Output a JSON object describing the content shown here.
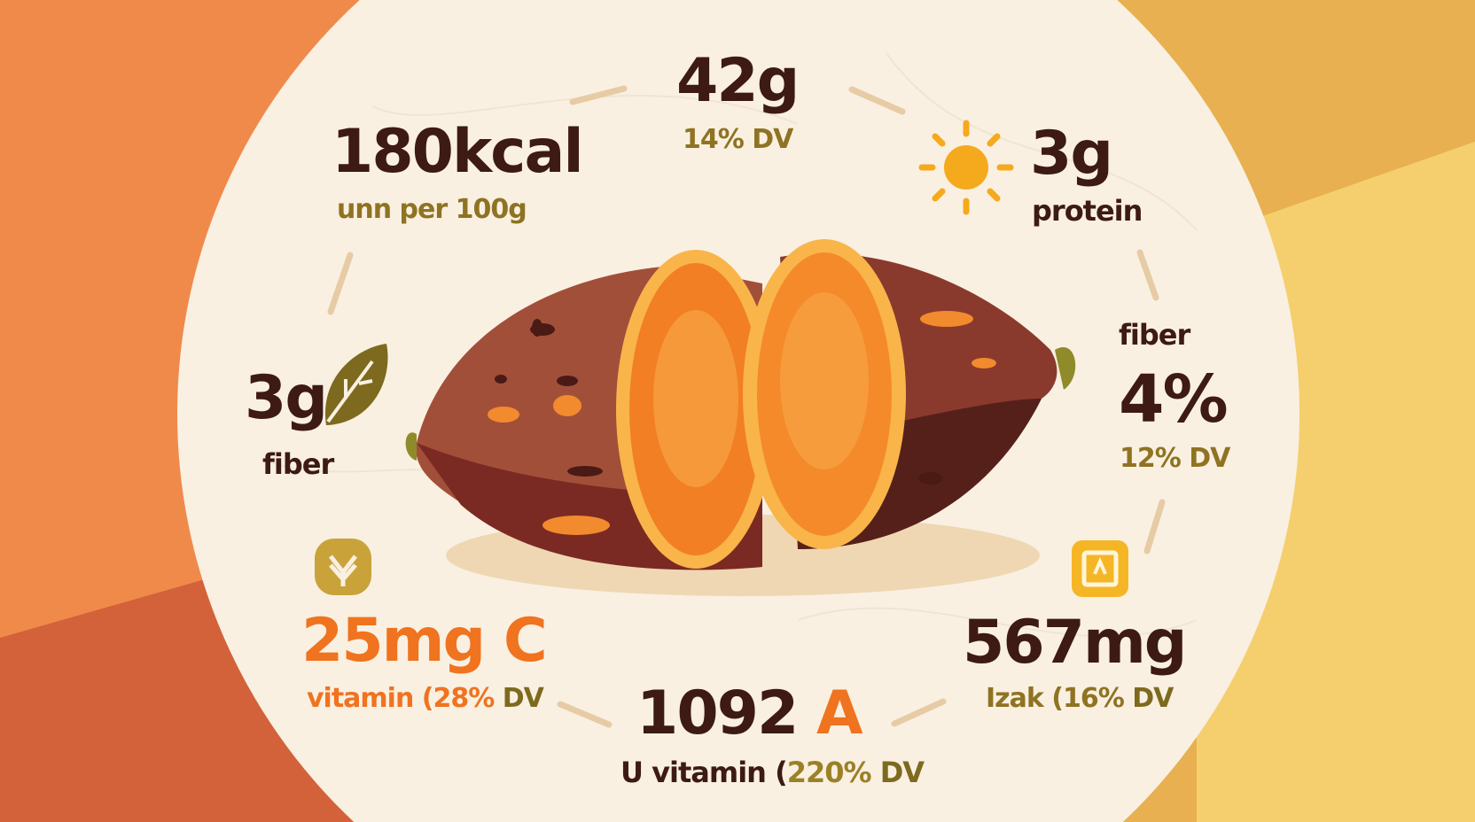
{
  "colors": {
    "background_left": "#f08a4b",
    "background_bottom_left": "#d3623a",
    "background_right": "#e8b050",
    "background_right_light": "#f5cf6e",
    "panel": "#f9f0e2",
    "dark_text": "#3d1a14",
    "olive_text": "#8f7322",
    "accent_orange": "#f0731f",
    "sun": "#f5a91c"
  },
  "calories": {
    "value": "180kcal",
    "caption": "unn per 100g"
  },
  "carbs": {
    "value": "42g",
    "caption": "14% DV"
  },
  "protein": {
    "value": "3g",
    "caption": "protein",
    "icon": "sun-icon"
  },
  "fiber_left": {
    "value": "3g",
    "caption": "fiber",
    "icon": "leaf-icon"
  },
  "fiber_right": {
    "label": "fiber",
    "value": "4%",
    "caption": "12% DV"
  },
  "vitamin_c": {
    "value": "25mg C",
    "caption_prefix": "vitamin (28%",
    "caption_suffix": " DV",
    "icon": "plant-badge-icon"
  },
  "potassium": {
    "value": "567mg",
    "caption_prefix": "Izak (16%",
    "caption_suffix": " DV",
    "icon": "a-badge-icon"
  },
  "vitamin_a": {
    "number": "1092",
    "letter": "A",
    "caption_prefix": "U vitamin (",
    "caption_pct": "220%",
    "caption_suffix": " DV"
  }
}
